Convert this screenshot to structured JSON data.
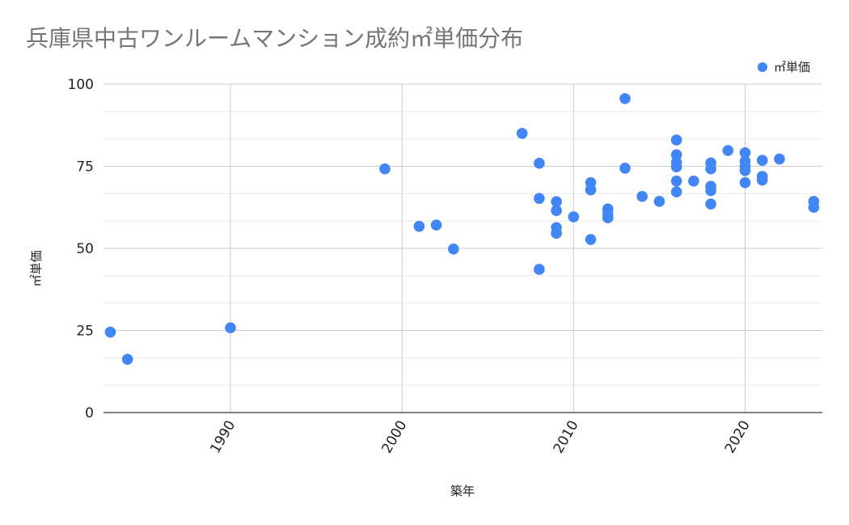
{
  "chart_data": {
    "type": "scatter",
    "title": "兵庫県中古ワンルームマンション成約㎡単価分布",
    "xlabel": "築年",
    "ylabel": "㎡単価",
    "xlim": [
      1982.6,
      2024.5
    ],
    "ylim": [
      0,
      100
    ],
    "x_ticks": [
      1990,
      2000,
      2010,
      2020
    ],
    "y_ticks": [
      0,
      25,
      50,
      75,
      100
    ],
    "grid": true,
    "legend_position": "top-right",
    "series": [
      {
        "name": "㎡単価",
        "color": "#4285F4",
        "points": [
          [
            1983,
            24.5
          ],
          [
            1984,
            16.2
          ],
          [
            1990,
            25.8
          ],
          [
            1999,
            74.2
          ],
          [
            2001,
            56.7
          ],
          [
            2002,
            57.1
          ],
          [
            2003,
            49.8
          ],
          [
            2007,
            85.0
          ],
          [
            2008,
            75.9
          ],
          [
            2008,
            65.2
          ],
          [
            2008,
            43.6
          ],
          [
            2009,
            64.2
          ],
          [
            2009,
            61.5
          ],
          [
            2009,
            56.3
          ],
          [
            2009,
            54.6
          ],
          [
            2010,
            59.6
          ],
          [
            2011,
            70.0
          ],
          [
            2011,
            67.8
          ],
          [
            2011,
            52.7
          ],
          [
            2012,
            62.0
          ],
          [
            2012,
            60.5
          ],
          [
            2012,
            59.3
          ],
          [
            2013,
            95.6
          ],
          [
            2013,
            74.4
          ],
          [
            2014,
            65.8
          ],
          [
            2015,
            64.3
          ],
          [
            2016,
            83.0
          ],
          [
            2016,
            78.5
          ],
          [
            2016,
            76.2
          ],
          [
            2016,
            74.8
          ],
          [
            2016,
            70.5
          ],
          [
            2016,
            67.2
          ],
          [
            2017,
            70.5
          ],
          [
            2018,
            76.0
          ],
          [
            2018,
            74.2
          ],
          [
            2018,
            68.9
          ],
          [
            2018,
            67.6
          ],
          [
            2018,
            63.5
          ],
          [
            2019,
            79.8
          ],
          [
            2020,
            79.1
          ],
          [
            2020,
            76.5
          ],
          [
            2020,
            74.9
          ],
          [
            2020,
            73.7
          ],
          [
            2020,
            70.0
          ],
          [
            2021,
            76.8
          ],
          [
            2021,
            71.9
          ],
          [
            2021,
            70.8
          ],
          [
            2022,
            77.2
          ],
          [
            2024,
            64.3
          ],
          [
            2024,
            62.5
          ]
        ]
      }
    ]
  },
  "legend": {
    "label": "㎡単価",
    "color": "#4285F4"
  }
}
